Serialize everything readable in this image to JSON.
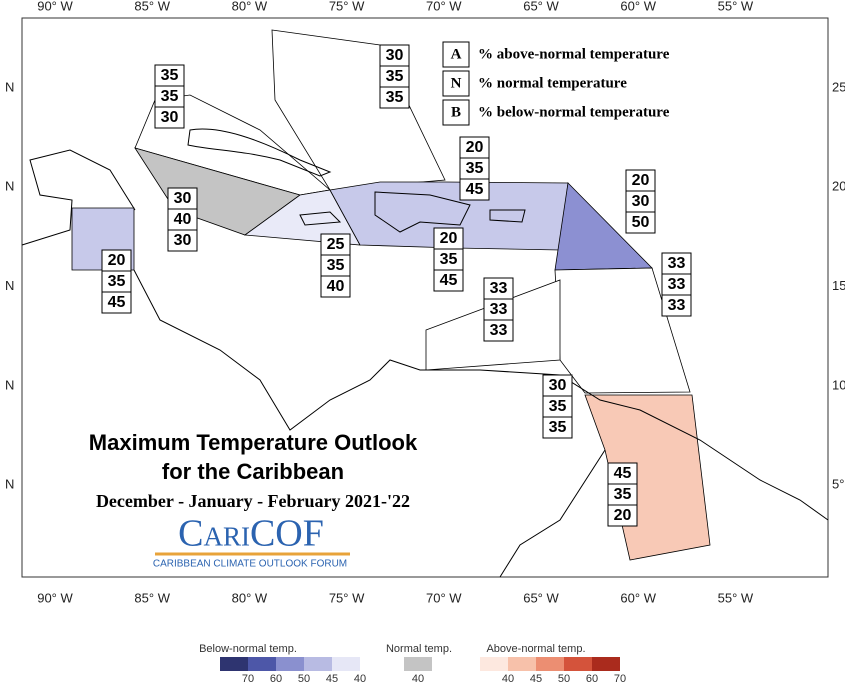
{
  "lon_labels": [
    "90° W",
    "85° W",
    "80° W",
    "75° W",
    "70° W",
    "65° W",
    "60° W",
    "55° W"
  ],
  "left_lat_labels": [
    "N",
    "N",
    "N",
    "N",
    "N"
  ],
  "right_lat_labels": [
    "25",
    "20°",
    "15",
    "10°",
    "5°"
  ],
  "key": [
    {
      "letter": "A",
      "text": "% above-normal temperature"
    },
    {
      "letter": "N",
      "text": "% normal temperature"
    },
    {
      "letter": "B",
      "text": "% below-normal temperature"
    }
  ],
  "title": {
    "line1": "Maximum Temperature Outlook",
    "line2": "for the Caribbean",
    "period": "December - January - February 2021-'22"
  },
  "logo": {
    "name": "CariCOF",
    "subtitle": "CARIBBEAN CLIMATE OUTLOOK FORUM"
  },
  "regions": [
    {
      "above": 30,
      "normal": 35,
      "below": 35
    },
    {
      "above": 35,
      "normal": 35,
      "below": 30
    },
    {
      "above": 20,
      "normal": 35,
      "below": 45
    },
    {
      "above": 30,
      "normal": 40,
      "below": 30
    },
    {
      "above": 25,
      "normal": 35,
      "below": 40
    },
    {
      "above": 20,
      "normal": 35,
      "below": 45
    },
    {
      "above": 20,
      "normal": 35,
      "below": 45
    },
    {
      "above": 20,
      "normal": 30,
      "below": 50
    },
    {
      "above": 33,
      "normal": 33,
      "below": 33
    },
    {
      "above": 33,
      "normal": 33,
      "below": 33
    },
    {
      "above": 30,
      "normal": 35,
      "below": 35
    },
    {
      "above": 45,
      "normal": 35,
      "below": 20
    }
  ],
  "legend": {
    "below_title": "Below-normal temp.",
    "below_ticks": [
      70,
      60,
      50,
      45,
      40
    ],
    "normal_title": "Normal temp.",
    "normal_ticks": [
      40
    ],
    "above_title": "Above-normal temp.",
    "above_ticks": [
      40,
      45,
      50,
      60,
      70
    ]
  }
}
